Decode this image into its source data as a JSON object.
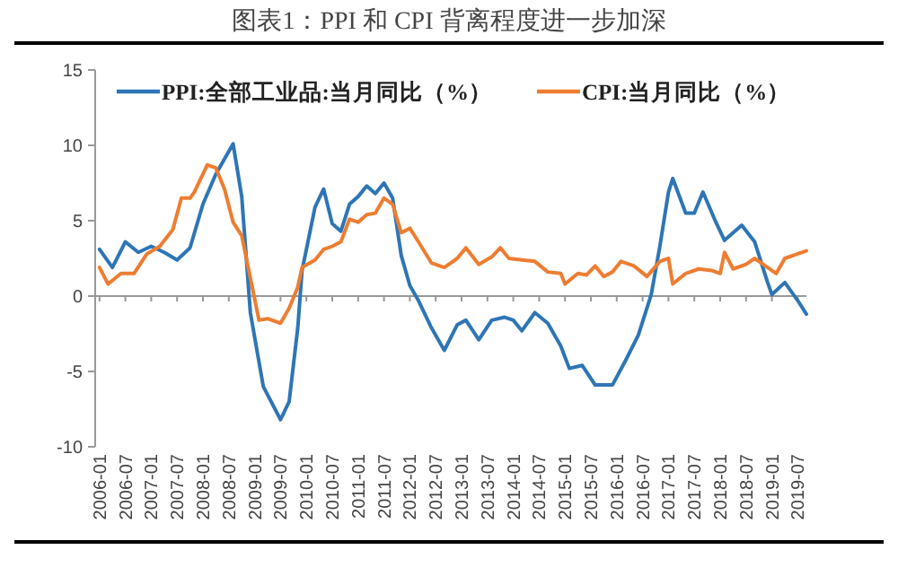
{
  "chart_data": {
    "type": "line",
    "title": "图表1：PPI 和 CPI 背离程度进一步加深",
    "xlim": [
      "2005-12",
      "2019-09"
    ],
    "xticks": [
      "2006-01",
      "2006-07",
      "2007-01",
      "2007-07",
      "2008-01",
      "2008-07",
      "2009-01",
      "2009-07",
      "2010-01",
      "2010-07",
      "2011-01",
      "2011-07",
      "2012-01",
      "2012-07",
      "2013-01",
      "2013-07",
      "2014-01",
      "2014-07",
      "2015-01",
      "2015-07",
      "2016-01",
      "2016-07",
      "2017-01",
      "2017-07",
      "2018-01",
      "2018-07",
      "2019-01",
      "2019-07"
    ],
    "ylim": [
      -10,
      15
    ],
    "yticks": [
      -10,
      -5,
      0,
      5,
      10,
      15
    ],
    "legend": "top",
    "marker": "none",
    "line_style": "solid",
    "series": [
      {
        "name": "PPI:全部工业品:当月同比（%）",
        "color": "#2e75b6",
        "x": [
          "2006-01",
          "2006-04",
          "2006-07",
          "2006-10",
          "2007-01",
          "2007-04",
          "2007-07",
          "2007-10",
          "2008-01",
          "2008-04",
          "2008-08",
          "2008-10",
          "2008-12",
          "2009-03",
          "2009-07",
          "2009-09",
          "2009-11",
          "2009-12",
          "2010-03",
          "2010-05",
          "2010-07",
          "2010-09",
          "2010-11",
          "2011-01",
          "2011-03",
          "2011-05",
          "2011-07",
          "2011-09",
          "2011-11",
          "2012-01",
          "2012-03",
          "2012-06",
          "2012-09",
          "2012-12",
          "2013-02",
          "2013-05",
          "2013-08",
          "2013-11",
          "2014-01",
          "2014-03",
          "2014-06",
          "2014-09",
          "2014-12",
          "2015-02",
          "2015-05",
          "2015-08",
          "2015-12",
          "2016-03",
          "2016-06",
          "2016-09",
          "2016-11",
          "2017-01",
          "2017-02",
          "2017-05",
          "2017-07",
          "2017-09",
          "2017-12",
          "2018-02",
          "2018-06",
          "2018-09",
          "2018-12",
          "2019-01",
          "2019-04",
          "2019-07",
          "2019-09"
        ],
        "values": [
          3.1,
          1.9,
          3.6,
          2.9,
          3.3,
          2.9,
          2.4,
          3.2,
          6.1,
          8.1,
          10.1,
          6.6,
          -1.1,
          -6.0,
          -8.2,
          -7.0,
          -2.1,
          1.7,
          5.9,
          7.1,
          4.8,
          4.3,
          6.1,
          6.6,
          7.3,
          6.8,
          7.5,
          6.5,
          2.7,
          0.7,
          -0.3,
          -2.1,
          -3.6,
          -1.9,
          -1.6,
          -2.9,
          -1.6,
          -1.4,
          -1.6,
          -2.3,
          -1.1,
          -1.8,
          -3.3,
          -4.8,
          -4.6,
          -5.9,
          -5.9,
          -4.3,
          -2.6,
          0.1,
          3.3,
          6.9,
          7.8,
          5.5,
          5.5,
          6.9,
          4.9,
          3.7,
          4.7,
          3.6,
          0.9,
          0.1,
          0.9,
          -0.3,
          -1.2
        ]
      },
      {
        "name": "CPI:当月同比（%）",
        "color": "#ed7d31",
        "x": [
          "2006-01",
          "2006-03",
          "2006-06",
          "2006-09",
          "2006-12",
          "2007-03",
          "2007-06",
          "2007-08",
          "2007-10",
          "2007-11",
          "2008-02",
          "2008-04",
          "2008-06",
          "2008-08",
          "2008-10",
          "2008-12",
          "2009-02",
          "2009-04",
          "2009-07",
          "2009-09",
          "2009-11",
          "2009-12",
          "2010-03",
          "2010-05",
          "2010-07",
          "2010-09",
          "2010-11",
          "2011-01",
          "2011-03",
          "2011-05",
          "2011-07",
          "2011-09",
          "2011-11",
          "2012-01",
          "2012-03",
          "2012-06",
          "2012-09",
          "2012-12",
          "2013-02",
          "2013-05",
          "2013-08",
          "2013-10",
          "2013-12",
          "2014-03",
          "2014-06",
          "2014-09",
          "2014-12",
          "2015-01",
          "2015-04",
          "2015-06",
          "2015-08",
          "2015-10",
          "2015-12",
          "2016-02",
          "2016-05",
          "2016-08",
          "2016-11",
          "2017-01",
          "2017-02",
          "2017-05",
          "2017-08",
          "2017-11",
          "2018-01",
          "2018-02",
          "2018-04",
          "2018-07",
          "2018-09",
          "2018-12",
          "2019-02",
          "2019-04",
          "2019-07",
          "2019-09"
        ],
        "values": [
          1.9,
          0.8,
          1.5,
          1.5,
          2.8,
          3.3,
          4.4,
          6.5,
          6.5,
          6.9,
          8.7,
          8.5,
          7.1,
          4.9,
          4.0,
          1.2,
          -1.6,
          -1.5,
          -1.8,
          -0.8,
          0.6,
          1.9,
          2.4,
          3.1,
          3.3,
          3.6,
          5.1,
          4.9,
          5.4,
          5.5,
          6.5,
          6.1,
          4.2,
          4.5,
          3.6,
          2.2,
          1.9,
          2.5,
          3.2,
          2.1,
          2.6,
          3.2,
          2.5,
          2.4,
          2.3,
          1.6,
          1.5,
          0.8,
          1.5,
          1.4,
          2.0,
          1.3,
          1.6,
          2.3,
          2.0,
          1.3,
          2.3,
          2.5,
          0.8,
          1.5,
          1.8,
          1.7,
          1.5,
          2.9,
          1.8,
          2.1,
          2.5,
          1.9,
          1.5,
          2.5,
          2.8,
          3.0
        ]
      }
    ]
  }
}
